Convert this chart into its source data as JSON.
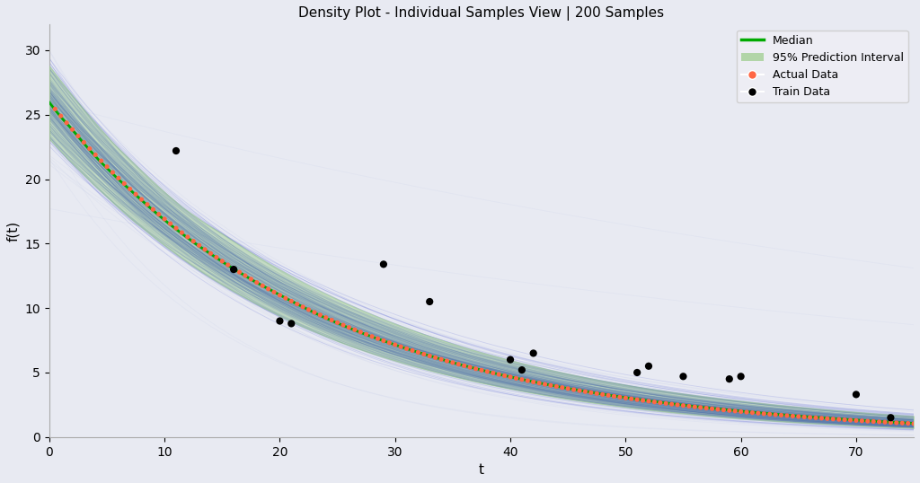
{
  "title": "Density Plot - Individual Samples View | 200 Samples",
  "xlabel": "t",
  "ylabel": "f(t)",
  "xlim": [
    0,
    75
  ],
  "ylim": [
    0,
    32
  ],
  "background_color": "#E8EAF2",
  "n_samples": 200,
  "n_outer": 30,
  "t_max": 75,
  "median_A": 26.0,
  "median_k": 0.043,
  "A_std": 1.5,
  "k_std": 0.003,
  "outer_A_std": 3.0,
  "outer_k_std": 0.012,
  "core_line_color": "#1122CC",
  "outer_line_color": "#8899DD",
  "core_alpha": 0.13,
  "outer_alpha": 0.07,
  "median_color": "#00AA00",
  "pi_color": "#99CC88",
  "pi_alpha": 0.45,
  "actual_color": "#FF6644",
  "train_color": "#000000",
  "train_t": [
    11,
    16,
    20,
    21,
    29,
    33,
    40,
    41,
    42,
    51,
    52,
    55,
    59,
    60,
    70,
    73
  ],
  "train_y": [
    22.2,
    13.0,
    9.0,
    8.8,
    13.4,
    10.5,
    6.0,
    5.2,
    6.5,
    5.0,
    5.5,
    4.7,
    4.5,
    4.7,
    3.3,
    1.5
  ],
  "legend_fontsize": 9,
  "title_fontsize": 11,
  "line_width": 0.6
}
